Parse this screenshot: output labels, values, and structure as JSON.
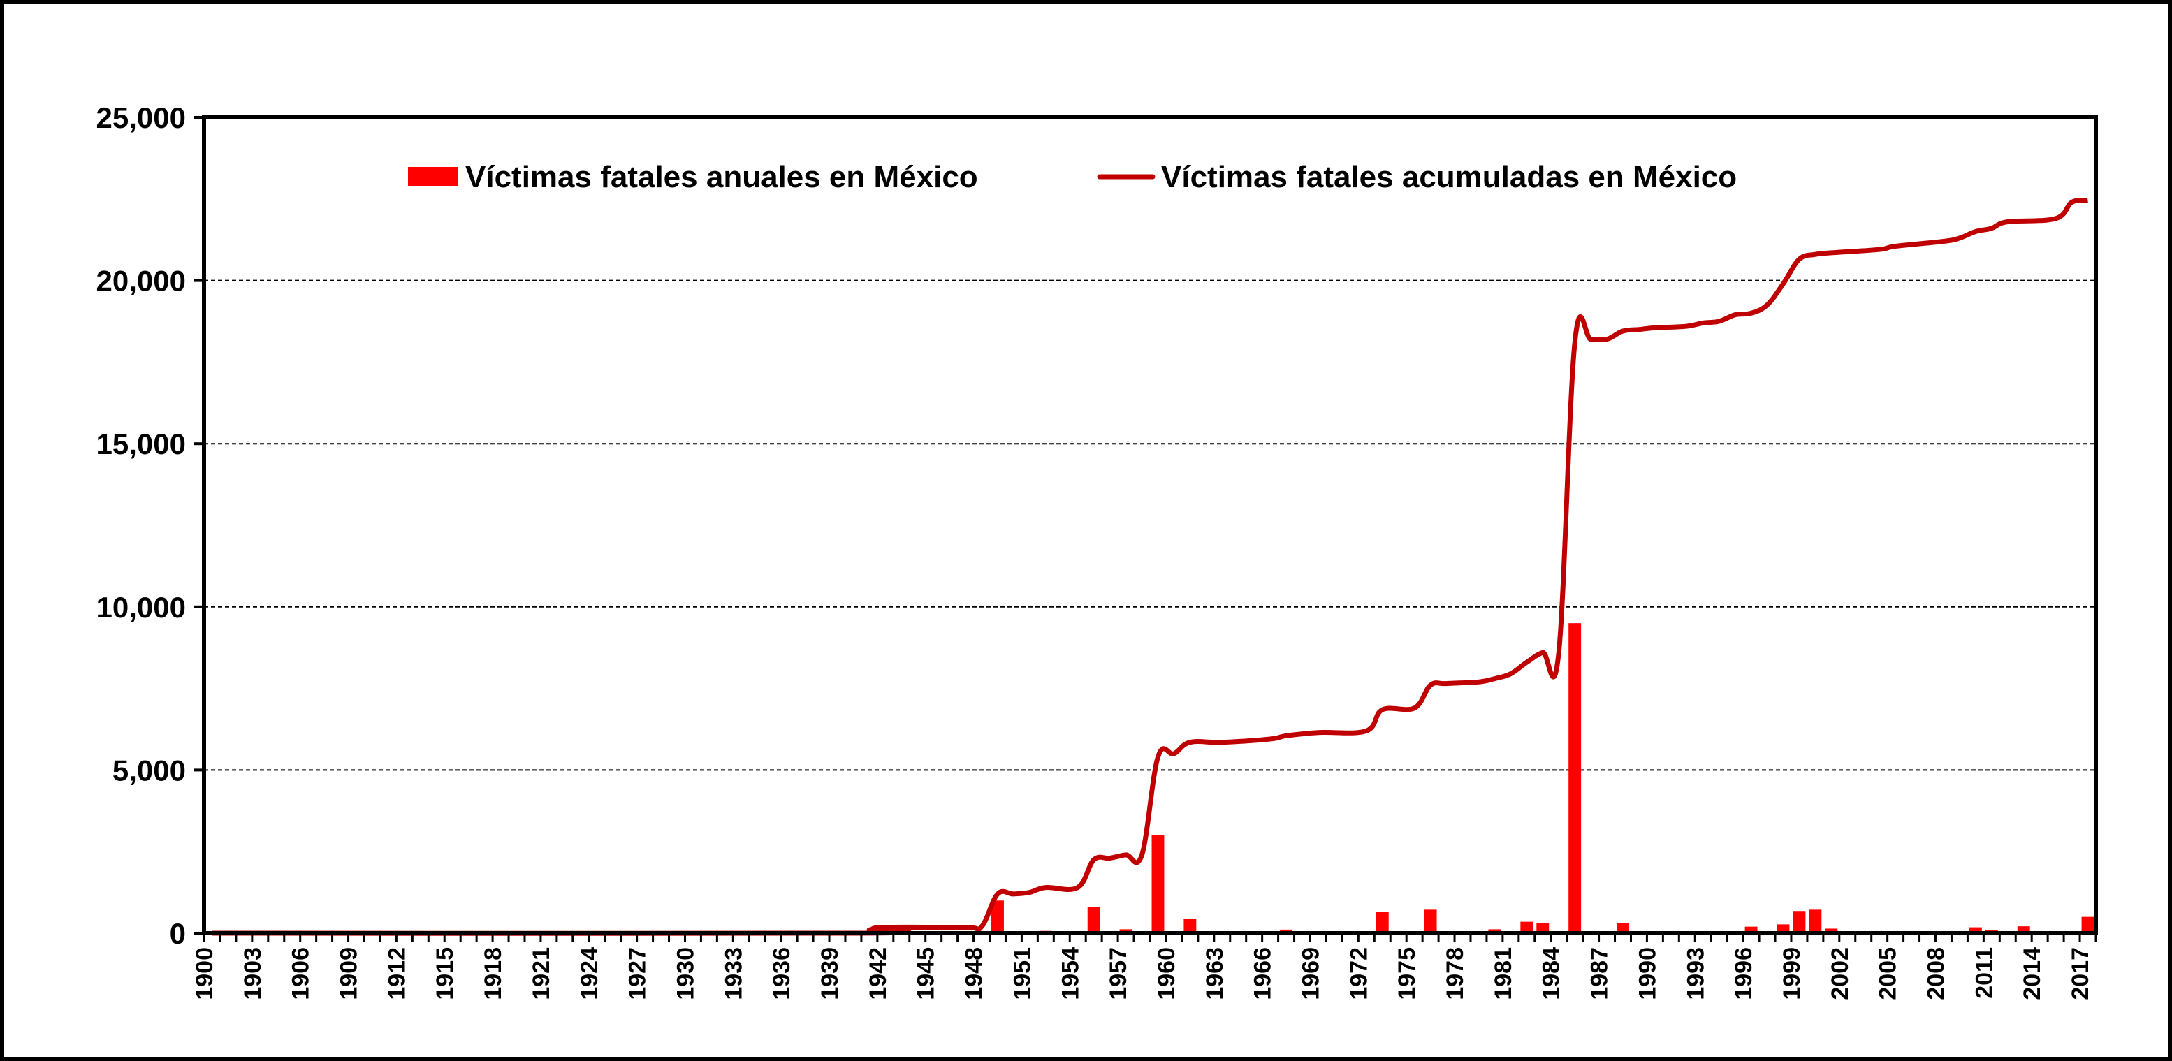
{
  "chart_data": {
    "type": "bar+line",
    "title": "",
    "xlabel": "",
    "ylabel": "",
    "ylim": [
      0,
      25000
    ],
    "y_ticks": [
      "0",
      "5,000",
      "10,000",
      "15,000",
      "20,000",
      "25,000"
    ],
    "y_tick_values": [
      0,
      5000,
      10000,
      15000,
      20000,
      25000
    ],
    "x_tick_labels": [
      "1900",
      "1903",
      "1906",
      "1909",
      "1912",
      "1915",
      "1918",
      "1921",
      "1924",
      "1927",
      "1930",
      "1933",
      "1936",
      "1939",
      "1942",
      "1945",
      "1948",
      "1951",
      "1954",
      "1957",
      "1960",
      "1963",
      "1966",
      "1969",
      "1972",
      "1975",
      "1978",
      "1981",
      "1984",
      "1987",
      "1990",
      "1993",
      "1996",
      "1999",
      "2002",
      "2005",
      "2008",
      "2011",
      "2014",
      "2017"
    ],
    "x_range": [
      1900,
      2018
    ],
    "grid": "horizontal-dashed",
    "legend_position": "top",
    "colors": {
      "bars": "#ff0000",
      "line": "#c00000"
    },
    "series": [
      {
        "name": "Víctimas fatales anuales en México",
        "kind": "bar",
        "color": "#ff0000",
        "points": [
          {
            "year": 1949,
            "value": 1000
          },
          {
            "year": 1952,
            "value": 70
          },
          {
            "year": 1955,
            "value": 800
          },
          {
            "year": 1957,
            "value": 120
          },
          {
            "year": 1959,
            "value": 3000
          },
          {
            "year": 1961,
            "value": 450
          },
          {
            "year": 1967,
            "value": 110
          },
          {
            "year": 1973,
            "value": 650
          },
          {
            "year": 1976,
            "value": 720
          },
          {
            "year": 1980,
            "value": 120
          },
          {
            "year": 1982,
            "value": 350
          },
          {
            "year": 1983,
            "value": 310
          },
          {
            "year": 1985,
            "value": 9500
          },
          {
            "year": 1988,
            "value": 300
          },
          {
            "year": 1990,
            "value": 60
          },
          {
            "year": 1994,
            "value": 60
          },
          {
            "year": 1996,
            "value": 200
          },
          {
            "year": 1998,
            "value": 270
          },
          {
            "year": 1999,
            "value": 680
          },
          {
            "year": 2000,
            "value": 720
          },
          {
            "year": 2001,
            "value": 140
          },
          {
            "year": 2005,
            "value": 60
          },
          {
            "year": 2010,
            "value": 180
          },
          {
            "year": 2011,
            "value": 90
          },
          {
            "year": 2013,
            "value": 210
          },
          {
            "year": 2016,
            "value": 50
          },
          {
            "year": 2017,
            "value": 500
          }
        ]
      },
      {
        "name": "Víctimas fatales acumuladas en México",
        "kind": "line",
        "color": "#c00000",
        "points": [
          {
            "year": 1900,
            "value": 0
          },
          {
            "year": 1940,
            "value": 0
          },
          {
            "year": 1941,
            "value": 100
          },
          {
            "year": 1942,
            "value": 180
          },
          {
            "year": 1947,
            "value": 180
          },
          {
            "year": 1948,
            "value": 200
          },
          {
            "year": 1949,
            "value": 1200
          },
          {
            "year": 1950,
            "value": 1200
          },
          {
            "year": 1951,
            "value": 1250
          },
          {
            "year": 1952,
            "value": 1400
          },
          {
            "year": 1954,
            "value": 1400
          },
          {
            "year": 1955,
            "value": 2250
          },
          {
            "year": 1956,
            "value": 2300
          },
          {
            "year": 1957,
            "value": 2400
          },
          {
            "year": 1958,
            "value": 2400
          },
          {
            "year": 1959,
            "value": 5400
          },
          {
            "year": 1960,
            "value": 5500
          },
          {
            "year": 1961,
            "value": 5850
          },
          {
            "year": 1963,
            "value": 5850
          },
          {
            "year": 1966,
            "value": 5950
          },
          {
            "year": 1967,
            "value": 6050
          },
          {
            "year": 1969,
            "value": 6150
          },
          {
            "year": 1972,
            "value": 6200
          },
          {
            "year": 1973,
            "value": 6850
          },
          {
            "year": 1975,
            "value": 6900
          },
          {
            "year": 1976,
            "value": 7600
          },
          {
            "year": 1977,
            "value": 7650
          },
          {
            "year": 1979,
            "value": 7700
          },
          {
            "year": 1980,
            "value": 7800
          },
          {
            "year": 1981,
            "value": 7950
          },
          {
            "year": 1982,
            "value": 8300
          },
          {
            "year": 1983,
            "value": 8600
          },
          {
            "year": 1984,
            "value": 8600
          },
          {
            "year": 1985,
            "value": 18100
          },
          {
            "year": 1986,
            "value": 18200
          },
          {
            "year": 1987,
            "value": 18200
          },
          {
            "year": 1988,
            "value": 18450
          },
          {
            "year": 1989,
            "value": 18500
          },
          {
            "year": 1990,
            "value": 18550
          },
          {
            "year": 1992,
            "value": 18600
          },
          {
            "year": 1993,
            "value": 18700
          },
          {
            "year": 1994,
            "value": 18750
          },
          {
            "year": 1995,
            "value": 18950
          },
          {
            "year": 1996,
            "value": 19000
          },
          {
            "year": 1997,
            "value": 19250
          },
          {
            "year": 1998,
            "value": 19900
          },
          {
            "year": 1999,
            "value": 20650
          },
          {
            "year": 2000,
            "value": 20800
          },
          {
            "year": 2001,
            "value": 20850
          },
          {
            "year": 2004,
            "value": 20950
          },
          {
            "year": 2005,
            "value": 21050
          },
          {
            "year": 2008,
            "value": 21200
          },
          {
            "year": 2009,
            "value": 21300
          },
          {
            "year": 2010,
            "value": 21500
          },
          {
            "year": 2011,
            "value": 21600
          },
          {
            "year": 2012,
            "value": 21800
          },
          {
            "year": 2015,
            "value": 21900
          },
          {
            "year": 2016,
            "value": 22400
          },
          {
            "year": 2017,
            "value": 22450
          }
        ]
      }
    ]
  }
}
